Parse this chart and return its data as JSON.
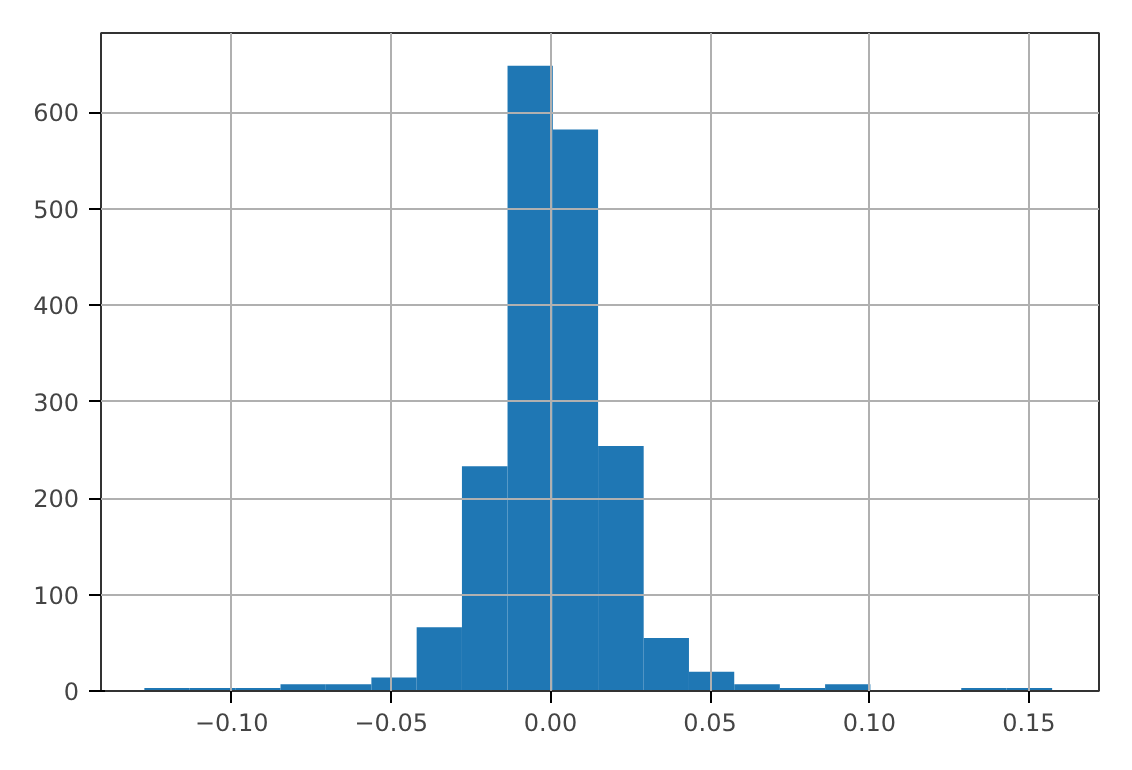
{
  "chart_data": {
    "type": "histogram",
    "bins": [
      -0.1274,
      -0.1132,
      -0.0989,
      -0.0847,
      -0.0705,
      -0.0562,
      -0.042,
      -0.0278,
      -0.0135,
      0.0007,
      0.0149,
      0.0292,
      0.0434,
      0.0576,
      0.0719,
      0.0861,
      0.1003,
      0.1146,
      0.1288,
      0.143,
      0.1573
    ],
    "values": [
      3,
      3,
      3,
      7,
      7,
      14,
      66,
      233,
      648,
      582,
      254,
      55,
      20,
      7,
      3,
      7,
      0,
      0,
      3,
      3
    ],
    "color": "#1f77b4",
    "xlim": [
      -0.141,
      0.172
    ],
    "ylim": [
      0,
      682
    ],
    "xticks": [
      {
        "value": -0.1,
        "label": "−0.10"
      },
      {
        "value": -0.05,
        "label": "−0.05"
      },
      {
        "value": 0,
        "label": "0.00"
      },
      {
        "value": 0.05,
        "label": "0.05"
      },
      {
        "value": 0.1,
        "label": "0.10"
      },
      {
        "value": 0.15,
        "label": "0.15"
      }
    ],
    "yticks": [
      0,
      100,
      200,
      300,
      400,
      500,
      600
    ],
    "grid": true
  }
}
